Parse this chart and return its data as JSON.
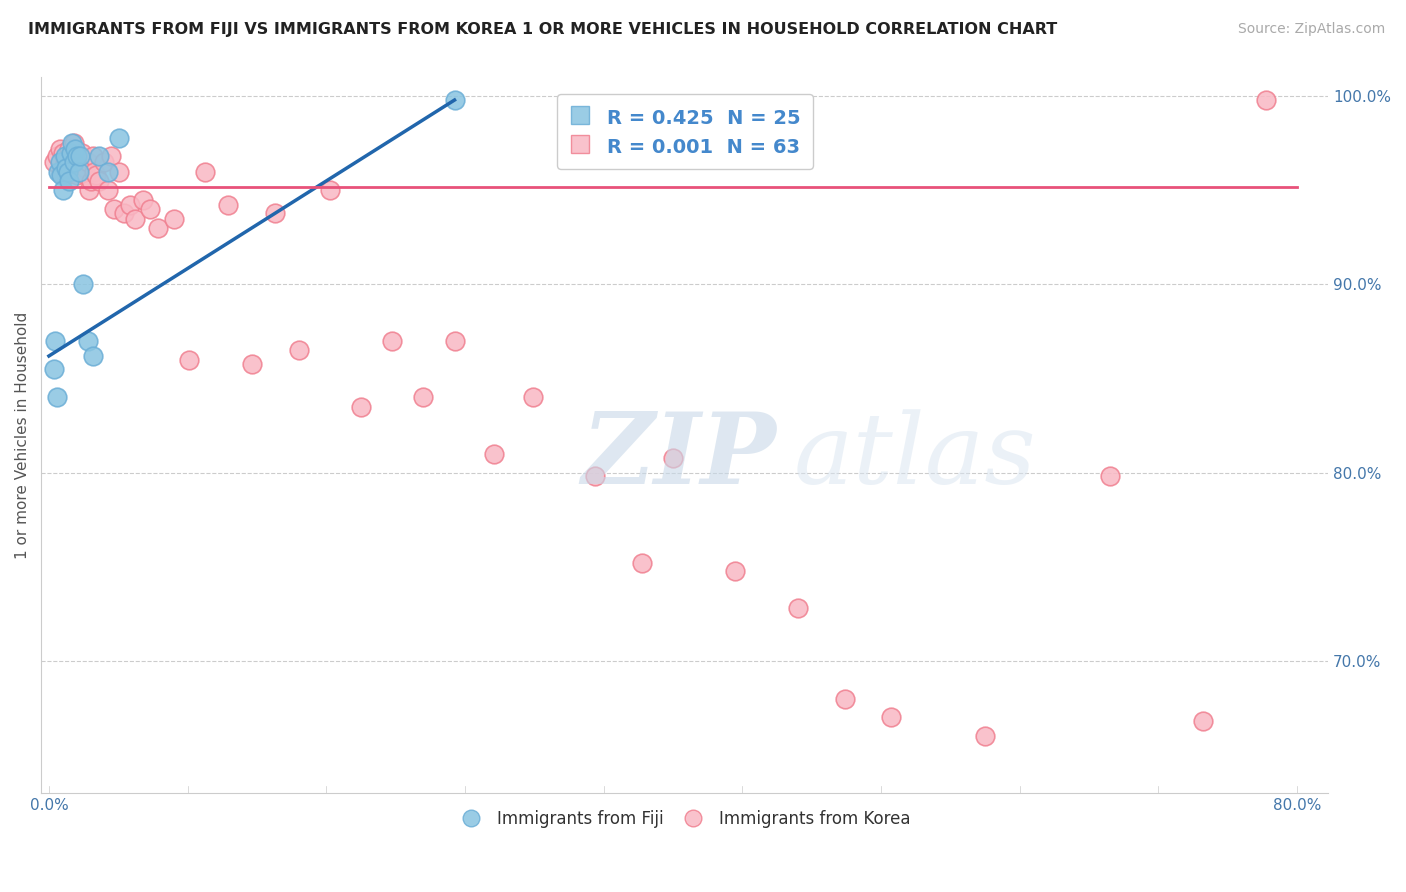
{
  "title": "IMMIGRANTS FROM FIJI VS IMMIGRANTS FROM KOREA 1 OR MORE VEHICLES IN HOUSEHOLD CORRELATION CHART",
  "source": "Source: ZipAtlas.com",
  "ylabel": "1 or more Vehicles in Household",
  "xlim": [
    -0.005,
    0.82
  ],
  "ylim": [
    0.63,
    1.01
  ],
  "fiji_color": "#89c4e1",
  "korea_color": "#f9b8c4",
  "fiji_edge": "#6baed6",
  "korea_edge": "#f08090",
  "fiji_R": 0.425,
  "fiji_N": 25,
  "korea_R": 0.001,
  "korea_N": 63,
  "watermark_zip": "ZIP",
  "watermark_atlas": "atlas",
  "fiji_x": [
    0.003,
    0.004,
    0.005,
    0.006,
    0.007,
    0.008,
    0.009,
    0.01,
    0.011,
    0.012,
    0.013,
    0.014,
    0.015,
    0.016,
    0.017,
    0.018,
    0.019,
    0.02,
    0.022,
    0.025,
    0.028,
    0.032,
    0.038,
    0.045,
    0.26
  ],
  "fiji_y": [
    0.855,
    0.87,
    0.84,
    0.96,
    0.965,
    0.958,
    0.95,
    0.968,
    0.962,
    0.96,
    0.955,
    0.97,
    0.975,
    0.965,
    0.972,
    0.968,
    0.96,
    0.968,
    0.9,
    0.87,
    0.862,
    0.968,
    0.96,
    0.978,
    0.998
  ],
  "korea_x": [
    0.003,
    0.005,
    0.007,
    0.008,
    0.009,
    0.01,
    0.011,
    0.012,
    0.013,
    0.014,
    0.015,
    0.016,
    0.017,
    0.018,
    0.019,
    0.02,
    0.021,
    0.022,
    0.023,
    0.024,
    0.025,
    0.026,
    0.027,
    0.028,
    0.029,
    0.03,
    0.032,
    0.035,
    0.038,
    0.04,
    0.042,
    0.045,
    0.048,
    0.052,
    0.055,
    0.06,
    0.065,
    0.07,
    0.08,
    0.09,
    0.1,
    0.115,
    0.13,
    0.145,
    0.16,
    0.18,
    0.2,
    0.22,
    0.24,
    0.26,
    0.285,
    0.31,
    0.35,
    0.38,
    0.4,
    0.44,
    0.48,
    0.51,
    0.54,
    0.6,
    0.68,
    0.74,
    0.78
  ],
  "korea_y": [
    0.965,
    0.968,
    0.972,
    0.96,
    0.97,
    0.965,
    0.958,
    0.96,
    0.972,
    0.965,
    0.968,
    0.975,
    0.96,
    0.958,
    0.965,
    0.968,
    0.97,
    0.96,
    0.962,
    0.958,
    0.965,
    0.95,
    0.955,
    0.968,
    0.96,
    0.958,
    0.955,
    0.965,
    0.95,
    0.968,
    0.94,
    0.96,
    0.938,
    0.942,
    0.935,
    0.945,
    0.94,
    0.93,
    0.935,
    0.86,
    0.96,
    0.942,
    0.858,
    0.938,
    0.865,
    0.95,
    0.835,
    0.87,
    0.84,
    0.87,
    0.81,
    0.84,
    0.798,
    0.752,
    0.808,
    0.748,
    0.728,
    0.68,
    0.67,
    0.66,
    0.798,
    0.668,
    0.998
  ],
  "korea_trendline_y_intercept": 0.952,
  "korea_trendline_slope": 0.0,
  "fiji_trendline_x0": 0.0,
  "fiji_trendline_y0": 0.862,
  "fiji_trendline_x1": 0.26,
  "fiji_trendline_y1": 0.998
}
